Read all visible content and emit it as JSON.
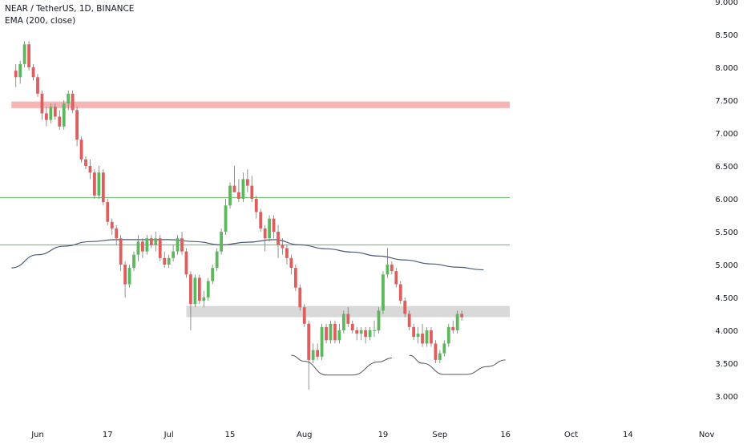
{
  "chart_data": {
    "type": "candlestick",
    "title": "NEAR / TetherUS, 1D, BINANCE",
    "indicator_label": "EMA (200, close)",
    "y_ticks": [
      "3.000",
      "3.500",
      "4.000",
      "4.500",
      "5.000",
      "5.500",
      "6.000",
      "6.500",
      "7.000",
      "7.500",
      "8.000",
      "8.500",
      "9.000"
    ],
    "y_range": [
      3.0,
      9.0
    ],
    "x_ticks": [
      {
        "label": "Jun",
        "day": 0
      },
      {
        "label": "17",
        "day": 16
      },
      {
        "label": "Jul",
        "day": 30
      },
      {
        "label": "15",
        "day": 44
      },
      {
        "label": "Aug",
        "day": 61
      },
      {
        "label": "19",
        "day": 79
      },
      {
        "label": "Sep",
        "day": 92
      },
      {
        "label": "16",
        "day": 107
      },
      {
        "label": "Oct",
        "day": 122
      },
      {
        "label": "14",
        "day": 135
      },
      {
        "label": "Nov",
        "day": 153
      }
    ],
    "colors": {
      "up": "#5cb85c",
      "down": "#e05d5d",
      "ema": "#4a5a7a",
      "resistance_zone": "#f7b4b4",
      "support_zone": "#d9d9d9",
      "level_line": "#5fb85f",
      "pattern_curve": "#555555",
      "axis_text": "#131722"
    },
    "candles": [
      [
        -5,
        7.95,
        8.05,
        7.7,
        7.85
      ],
      [
        -4,
        7.85,
        8.1,
        7.75,
        8.05
      ],
      [
        -3,
        8.05,
        8.4,
        8.0,
        8.35
      ],
      [
        -2,
        8.35,
        8.4,
        7.95,
        8.0
      ],
      [
        -1,
        8.0,
        8.05,
        7.8,
        7.85
      ],
      [
        0,
        7.85,
        7.9,
        7.55,
        7.6
      ],
      [
        1,
        7.6,
        7.65,
        7.2,
        7.3
      ],
      [
        2,
        7.3,
        7.4,
        7.1,
        7.2
      ],
      [
        3,
        7.2,
        7.45,
        7.15,
        7.4
      ],
      [
        4,
        7.4,
        7.45,
        7.2,
        7.25
      ],
      [
        5,
        7.25,
        7.35,
        7.05,
        7.1
      ],
      [
        6,
        7.1,
        7.5,
        7.05,
        7.45
      ],
      [
        7,
        7.45,
        7.65,
        7.35,
        7.6
      ],
      [
        8,
        7.6,
        7.65,
        7.3,
        7.35
      ],
      [
        9,
        7.35,
        7.4,
        6.8,
        6.9
      ],
      [
        10,
        6.9,
        6.95,
        6.55,
        6.6
      ],
      [
        11,
        6.6,
        6.65,
        6.45,
        6.5
      ],
      [
        12,
        6.5,
        6.6,
        6.3,
        6.4
      ],
      [
        13,
        6.4,
        6.45,
        6.0,
        6.05
      ],
      [
        14,
        6.05,
        6.5,
        6.0,
        6.4
      ],
      [
        15,
        6.4,
        6.45,
        5.9,
        5.95
      ],
      [
        16,
        5.95,
        6.0,
        5.6,
        5.65
      ],
      [
        17,
        5.65,
        5.7,
        5.45,
        5.55
      ],
      [
        18,
        5.55,
        5.6,
        5.3,
        5.4
      ],
      [
        19,
        5.4,
        5.45,
        4.9,
        5.0
      ],
      [
        20,
        5.0,
        5.05,
        4.5,
        4.7
      ],
      [
        21,
        4.7,
        5.0,
        4.65,
        4.95
      ],
      [
        22,
        4.95,
        5.2,
        4.9,
        5.15
      ],
      [
        23,
        5.15,
        5.45,
        5.05,
        5.35
      ],
      [
        24,
        5.35,
        5.4,
        5.1,
        5.2
      ],
      [
        25,
        5.2,
        5.45,
        5.15,
        5.4
      ],
      [
        26,
        5.4,
        5.45,
        5.25,
        5.3
      ],
      [
        27,
        5.3,
        5.5,
        5.2,
        5.4
      ],
      [
        28,
        5.4,
        5.45,
        5.05,
        5.1
      ],
      [
        29,
        5.1,
        5.2,
        4.95,
        5.0
      ],
      [
        30,
        5.0,
        5.15,
        4.95,
        5.1
      ],
      [
        31,
        5.1,
        5.3,
        5.05,
        5.2
      ],
      [
        32,
        5.2,
        5.45,
        5.15,
        5.4
      ],
      [
        33,
        5.4,
        5.5,
        5.15,
        5.2
      ],
      [
        34,
        5.2,
        5.25,
        4.8,
        4.85
      ],
      [
        35,
        4.85,
        4.9,
        4.0,
        4.4
      ],
      [
        36,
        4.4,
        4.85,
        4.35,
        4.8
      ],
      [
        37,
        4.8,
        4.85,
        4.4,
        4.45
      ],
      [
        38,
        4.45,
        4.6,
        4.35,
        4.5
      ],
      [
        39,
        4.5,
        4.8,
        4.45,
        4.75
      ],
      [
        40,
        4.75,
        5.0,
        4.7,
        4.95
      ],
      [
        41,
        4.95,
        5.25,
        4.9,
        5.2
      ],
      [
        42,
        5.2,
        5.55,
        5.15,
        5.5
      ],
      [
        43,
        5.5,
        6.0,
        5.45,
        5.9
      ],
      [
        44,
        5.9,
        6.25,
        5.85,
        6.2
      ],
      [
        45,
        6.2,
        6.5,
        6.1,
        6.1
      ],
      [
        46,
        6.1,
        6.3,
        5.95,
        6.0
      ],
      [
        47,
        6.0,
        6.4,
        5.95,
        6.3
      ],
      [
        48,
        6.3,
        6.45,
        6.1,
        6.2
      ],
      [
        49,
        6.2,
        6.35,
        5.95,
        6.0
      ],
      [
        50,
        6.0,
        6.05,
        5.7,
        5.8
      ],
      [
        51,
        5.8,
        5.85,
        5.5,
        5.55
      ],
      [
        52,
        5.55,
        5.6,
        5.2,
        5.4
      ],
      [
        53,
        5.4,
        5.75,
        5.35,
        5.7
      ],
      [
        54,
        5.7,
        5.75,
        5.4,
        5.5
      ],
      [
        55,
        5.5,
        5.6,
        5.1,
        5.3
      ],
      [
        56,
        5.3,
        5.4,
        5.15,
        5.25
      ],
      [
        57,
        5.25,
        5.3,
        5.0,
        5.1
      ],
      [
        58,
        5.1,
        5.15,
        4.85,
        4.95
      ],
      [
        59,
        4.95,
        5.0,
        4.6,
        4.65
      ],
      [
        60,
        4.65,
        4.7,
        4.3,
        4.35
      ],
      [
        61,
        4.35,
        4.4,
        4.05,
        4.1
      ],
      [
        62,
        4.1,
        4.15,
        3.1,
        3.55
      ],
      [
        63,
        3.55,
        3.8,
        3.5,
        3.7
      ],
      [
        64,
        3.7,
        3.8,
        3.55,
        3.6
      ],
      [
        65,
        3.6,
        4.1,
        3.55,
        4.05
      ],
      [
        66,
        4.05,
        4.1,
        3.8,
        3.85
      ],
      [
        67,
        3.85,
        4.15,
        3.8,
        4.1
      ],
      [
        68,
        4.1,
        4.15,
        3.8,
        3.85
      ],
      [
        69,
        3.85,
        4.1,
        3.8,
        4.0
      ],
      [
        70,
        4.0,
        4.3,
        3.95,
        4.25
      ],
      [
        71,
        4.25,
        4.35,
        4.05,
        4.1
      ],
      [
        72,
        4.1,
        4.15,
        3.95,
        4.0
      ],
      [
        73,
        4.0,
        4.05,
        3.85,
        3.95
      ],
      [
        74,
        3.95,
        4.05,
        3.85,
        4.0
      ],
      [
        75,
        4.0,
        4.05,
        3.8,
        3.9
      ],
      [
        76,
        3.9,
        4.05,
        3.85,
        4.0
      ],
      [
        77,
        4.0,
        4.15,
        3.9,
        4.0
      ],
      [
        78,
        4.0,
        4.35,
        3.95,
        4.3
      ],
      [
        79,
        4.3,
        4.9,
        4.25,
        4.85
      ],
      [
        80,
        4.85,
        5.25,
        4.8,
        5.0
      ],
      [
        81,
        5.0,
        5.05,
        4.85,
        4.9
      ],
      [
        82,
        4.9,
        4.95,
        4.65,
        4.7
      ],
      [
        83,
        4.7,
        4.75,
        4.4,
        4.45
      ],
      [
        84,
        4.45,
        4.5,
        4.2,
        4.25
      ],
      [
        85,
        4.25,
        4.3,
        4.0,
        4.05
      ],
      [
        86,
        4.05,
        4.1,
        3.85,
        3.9
      ],
      [
        87,
        3.9,
        4.05,
        3.8,
        3.95
      ],
      [
        88,
        3.95,
        4.1,
        3.75,
        3.8
      ],
      [
        89,
        3.8,
        4.05,
        3.75,
        4.0
      ],
      [
        90,
        4.0,
        4.05,
        3.75,
        3.8
      ],
      [
        91,
        3.8,
        3.85,
        3.5,
        3.55
      ],
      [
        92,
        3.55,
        3.7,
        3.5,
        3.65
      ],
      [
        93,
        3.65,
        3.85,
        3.6,
        3.8
      ],
      [
        94,
        3.8,
        4.1,
        3.75,
        4.05
      ],
      [
        95,
        4.05,
        4.15,
        3.95,
        4.0
      ],
      [
        96,
        4.0,
        4.3,
        3.95,
        4.25
      ],
      [
        97,
        4.25,
        4.3,
        4.15,
        4.2
      ]
    ],
    "ema_200": [
      [
        -6,
        4.95
      ],
      [
        0,
        5.15
      ],
      [
        6,
        5.28
      ],
      [
        12,
        5.35
      ],
      [
        18,
        5.38
      ],
      [
        24,
        5.38
      ],
      [
        30,
        5.38
      ],
      [
        36,
        5.35
      ],
      [
        42,
        5.3
      ],
      [
        48,
        5.34
      ],
      [
        54,
        5.38
      ],
      [
        60,
        5.3
      ],
      [
        66,
        5.24
      ],
      [
        72,
        5.19
      ],
      [
        78,
        5.13
      ],
      [
        84,
        5.07
      ],
      [
        90,
        5.01
      ],
      [
        96,
        4.96
      ],
      [
        102,
        4.92
      ]
    ],
    "zones": [
      {
        "name": "resistance",
        "from_day": -6,
        "to_day": 112,
        "low": 7.38,
        "high": 7.48
      },
      {
        "name": "support",
        "from_day": 34,
        "to_day": 112,
        "low": 4.2,
        "high": 4.37
      }
    ],
    "level_lines": [
      {
        "name": "6.0 level",
        "y": 6.02,
        "from_day": -6,
        "to_day": 112
      },
      {
        "name": "5.3 level",
        "y": 5.3,
        "from_day": -6,
        "to_day": 112
      }
    ],
    "pattern_curves": [
      {
        "name": "left-shoulder-bottom",
        "points": [
          [
            58,
            3.62
          ],
          [
            61,
            3.53
          ],
          [
            66,
            3.32
          ],
          [
            72,
            3.32
          ],
          [
            78,
            3.52
          ],
          [
            81,
            3.58
          ]
        ]
      },
      {
        "name": "right-shoulder-bottom",
        "points": [
          [
            85,
            3.62
          ],
          [
            88,
            3.5
          ],
          [
            93,
            3.33
          ],
          [
            98,
            3.33
          ],
          [
            103,
            3.45
          ],
          [
            107,
            3.55
          ]
        ]
      }
    ]
  }
}
